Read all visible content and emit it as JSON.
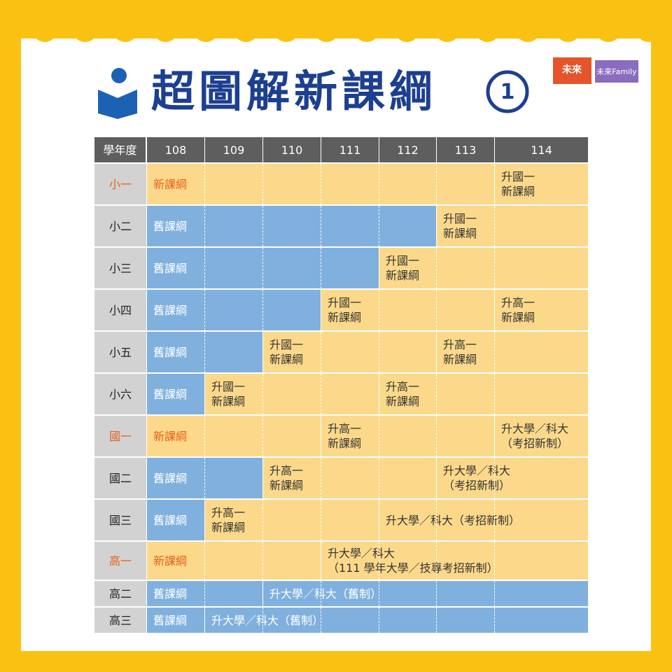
{
  "header": {
    "title": "超圖解新課綱",
    "badge": "1",
    "logos": [
      "未來",
      "未來Family"
    ]
  },
  "table": {
    "columns": [
      "學年度",
      "108",
      "109",
      "110",
      "111",
      "112",
      "113",
      "114"
    ],
    "rows": [
      {
        "label": "小一",
        "segments": [
          [
            "新課綱"
          ],
          [
            "升國一",
            "新課綱"
          ]
        ]
      },
      {
        "label": "小二",
        "segments": [
          [
            "舊課綱"
          ],
          [
            "升國一",
            "新課綱"
          ]
        ]
      },
      {
        "label": "小三",
        "segments": [
          [
            "舊課綱"
          ],
          [
            "升國一",
            "新課綱"
          ]
        ]
      },
      {
        "label": "小四",
        "segments": [
          [
            "舊課綱"
          ],
          [
            "升國一",
            "新課綱"
          ],
          [
            "升高一",
            "新課綱"
          ]
        ]
      },
      {
        "label": "小五",
        "segments": [
          [
            "舊課綱"
          ],
          [
            "升國一",
            "新課綱"
          ],
          [
            "升高一",
            "新課綱"
          ]
        ]
      },
      {
        "label": "小六",
        "segments": [
          [
            "舊課綱"
          ],
          [
            "升國一",
            "新課綱"
          ],
          [
            "升高一",
            "新課綱"
          ]
        ]
      },
      {
        "label": "國一",
        "segments": [
          [
            "新課綱"
          ],
          [
            "升高一",
            "新課綱"
          ],
          [
            "升大學／科大",
            "（考招新制）"
          ]
        ]
      },
      {
        "label": "國二",
        "segments": [
          [
            "舊課綱"
          ],
          [
            "升高一",
            "新課綱"
          ],
          [
            "升大學／科大",
            "（考招新制）"
          ]
        ]
      },
      {
        "label": "國三",
        "segments": [
          [
            "舊課綱"
          ],
          [
            "升高一",
            "新課綱"
          ],
          [
            "升大學／科大（考招新制）"
          ]
        ]
      },
      {
        "label": "高一",
        "segments": [
          [
            "新課綱"
          ],
          [
            "升大學／科大",
            "（111 學年大學／技專考招新制）"
          ]
        ]
      },
      {
        "label": "高二",
        "segments": [
          [
            "舊課綱"
          ],
          [
            "升大學／科大（舊制）"
          ]
        ]
      },
      {
        "label": "高三",
        "segments": [
          [
            "舊課綱"
          ],
          [
            "升大學／科大（舊制）"
          ]
        ]
      }
    ]
  }
}
